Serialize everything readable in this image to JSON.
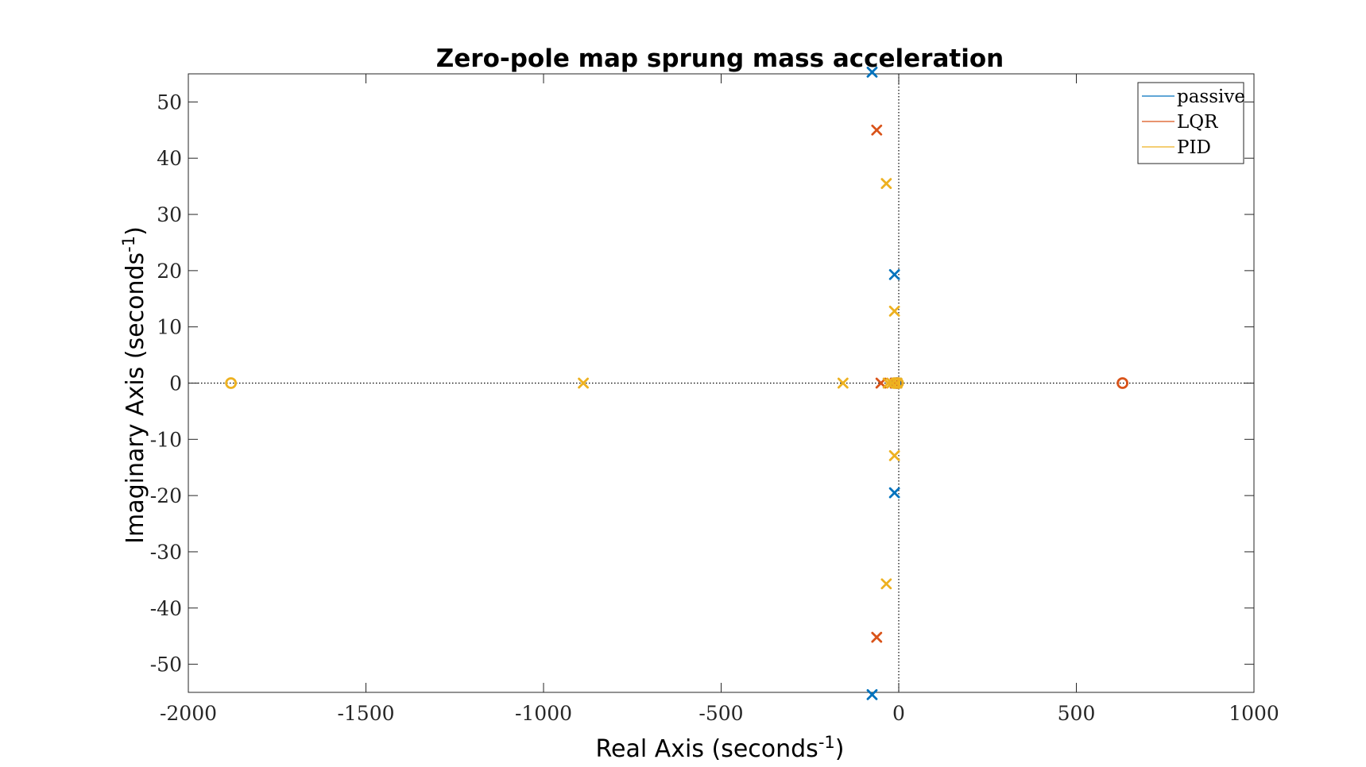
{
  "chart_data": {
    "type": "scatter",
    "title": "Zero-pole map sprung mass acceleration",
    "xlabel": {
      "text": "Real Axis (seconds",
      "sup": "-1",
      "close": ")"
    },
    "ylabel": {
      "text": "Imaginary Axis (seconds",
      "sup": "-1",
      "close": ")"
    },
    "xlim": [
      -2000,
      1000
    ],
    "ylim": [
      -55,
      55
    ],
    "xticks": [
      -2000,
      -1500,
      -1000,
      -500,
      0,
      500,
      1000
    ],
    "xtick_labels": [
      "-2000",
      "-1500",
      "-1000",
      "-500",
      "0",
      "500",
      "1000"
    ],
    "yticks": [
      50,
      40,
      30,
      20,
      10,
      0,
      -10,
      -20,
      -30,
      -40,
      -50
    ],
    "ytick_labels": [
      "50",
      "40",
      "30",
      "20",
      "10",
      "0",
      "-10",
      "-20",
      "-30",
      "-40",
      "-50"
    ],
    "grid": false,
    "legend": {
      "position": "top-right"
    },
    "series": [
      {
        "name": "passive",
        "color": "#0072BD",
        "poles": [
          [
            -75,
            55.3
          ],
          [
            -12,
            19.3
          ],
          [
            -12,
            -19.5
          ],
          [
            -75,
            -55.4
          ],
          [
            -8,
            0
          ]
        ],
        "zeros": [
          [
            -5,
            0
          ]
        ]
      },
      {
        "name": "LQR",
        "color": "#D95319",
        "poles": [
          [
            -62,
            45
          ],
          [
            -62,
            -45.2
          ],
          [
            -50,
            0
          ],
          [
            -10,
            0
          ]
        ],
        "zeros": [
          [
            630,
            0
          ],
          [
            -3,
            0
          ]
        ]
      },
      {
        "name": "PID",
        "color": "#EDB120",
        "poles": [
          [
            -35,
            35.5
          ],
          [
            -12,
            12.8
          ],
          [
            -12,
            -12.9
          ],
          [
            -35,
            -35.7
          ],
          [
            -888,
            0
          ],
          [
            -157,
            0
          ],
          [
            -30,
            0
          ],
          [
            -20,
            0
          ],
          [
            -5,
            0
          ]
        ],
        "zeros": [
          [
            -1880,
            0
          ],
          [
            -12,
            0
          ],
          [
            -2,
            0
          ]
        ]
      }
    ]
  }
}
